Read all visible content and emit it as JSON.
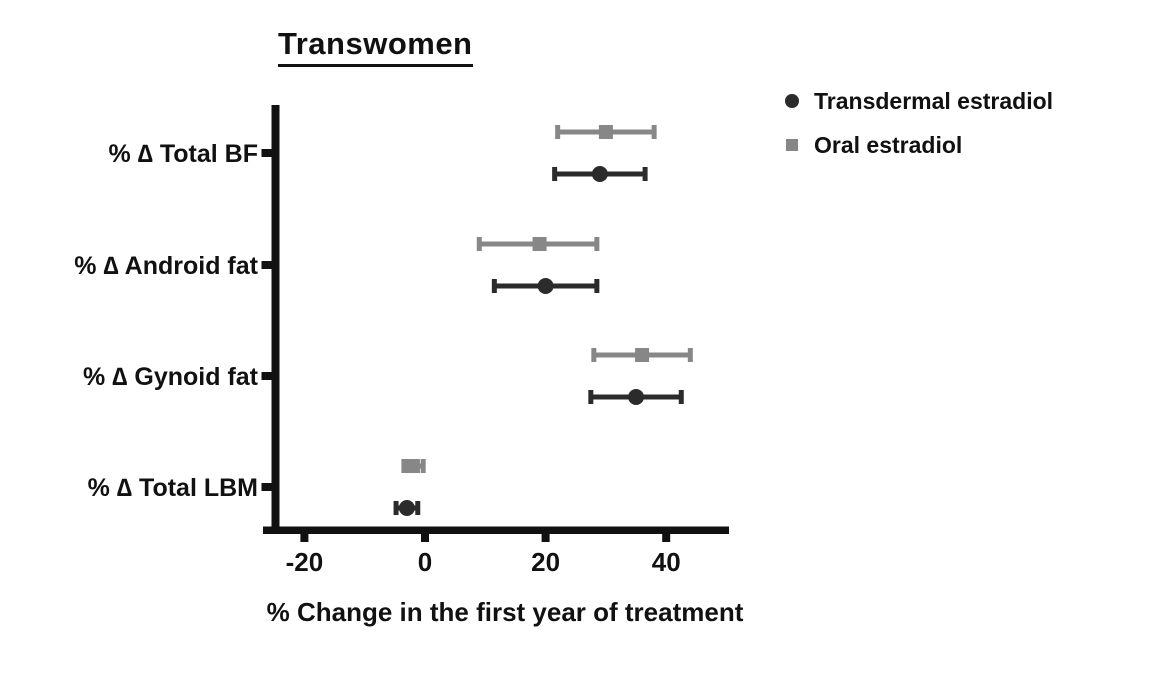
{
  "chart_data": {
    "type": "scatter",
    "subtype": "horizontal-dot-plot-with-error-bars",
    "title": "Transwomen",
    "xlabel": "% Change in the first year of treatment",
    "ylabel": "",
    "categories": [
      "% ∆ Total BF",
      "% ∆ Android fat",
      "% ∆ Gynoid fat",
      "% ∆ Total LBM"
    ],
    "x_ticks": [
      -20,
      0,
      20,
      40
    ],
    "xlim": [
      -27,
      50
    ],
    "grid": false,
    "legend_position": "top-right",
    "axis_color": "#111111",
    "legend": [
      {
        "label": "Transdermal estradiol",
        "marker": "circle",
        "color": "#2b2b2b"
      },
      {
        "label": "Oral estradiol",
        "marker": "square",
        "color": "#878787"
      }
    ],
    "series": [
      {
        "name": "Oral estradiol",
        "marker": "square",
        "color": "#878787",
        "values": [
          30,
          19,
          36,
          -2
        ],
        "ci_low": [
          22,
          9,
          28,
          -3.5
        ],
        "ci_high": [
          38,
          28.5,
          44,
          -0.3
        ]
      },
      {
        "name": "Transdermal estradiol",
        "marker": "circle",
        "color": "#2b2b2b",
        "values": [
          29,
          20,
          35,
          -3
        ],
        "ci_low": [
          21.5,
          11.5,
          27.5,
          -4.8
        ],
        "ci_high": [
          36.5,
          28.5,
          42.5,
          -1.2
        ]
      }
    ]
  }
}
